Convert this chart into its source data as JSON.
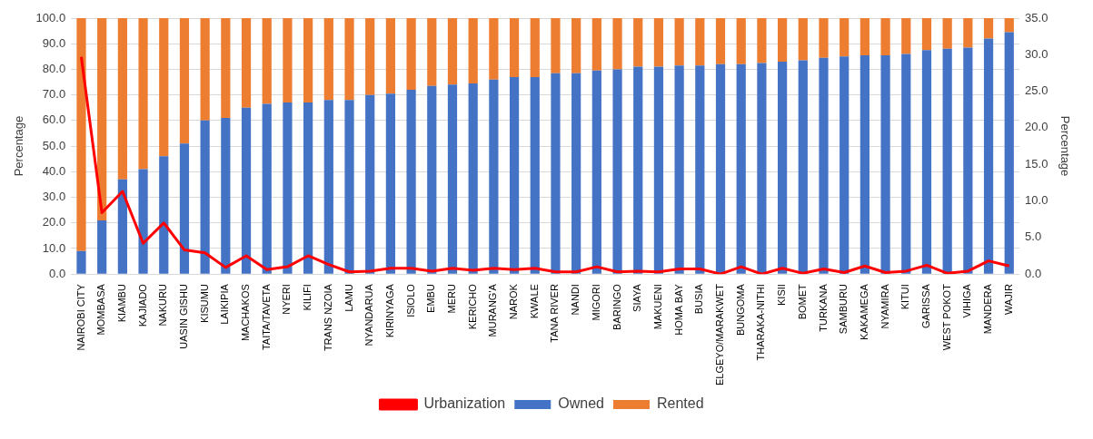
{
  "chart_data": {
    "type": "bar",
    "stacked": true,
    "ylabel": "Percentage",
    "y2label": "Percentage",
    "categories": [
      "NAIROBI CITY",
      "MOMBASA",
      "KIAMBU",
      "KAJIADO",
      "NAKURU",
      "UASIN GISHU",
      "KISUMU",
      "LAIKIPIA",
      "MACHAKOS",
      "TAITA/TAVETA",
      "NYERI",
      "KILIFI",
      "TRANS NZOIA",
      "LAMU",
      "NYANDARUA",
      "KIRINYAGA",
      "ISIOLO",
      "EMBU",
      "MERU",
      "KERICHO",
      "MURANG'A",
      "NAROK",
      "KWALE",
      "TANA RIVER",
      "NANDI",
      "MIGORI",
      "BARINGO",
      "SIAYA",
      "MAKUENI",
      "HOMA BAY",
      "BUSIA",
      "ELGEYO/MARAKWET",
      "BUNGOMA",
      "THARAKA-NITHI",
      "KISII",
      "BOMET",
      "TURKANA",
      "SAMBURU",
      "KAKAMEGA",
      "NYAMIRA",
      "KITUI",
      "GARISSA",
      "WEST POKOT",
      "VIHIGA",
      "MANDERA",
      "WAJIR"
    ],
    "series": [
      {
        "name": "Owned",
        "color": "#4472c4",
        "values": [
          9,
          21,
          37,
          41,
          46,
          51,
          60,
          61,
          65,
          66.5,
          67,
          67,
          68,
          68,
          70,
          70.5,
          72,
          73.5,
          74,
          74.5,
          76,
          77,
          77,
          78.5,
          78.5,
          79.5,
          80,
          81,
          81,
          81.5,
          81.5,
          82,
          82,
          82.5,
          83,
          83.5,
          84.5,
          85,
          85.5,
          85.5,
          86,
          87.5,
          88,
          88.5,
          92,
          94.5
        ]
      },
      {
        "name": "Rented",
        "color": "#ed7d31",
        "values": [
          91,
          79,
          63,
          59,
          54,
          49,
          40,
          39,
          35,
          33.5,
          33,
          33,
          32,
          32,
          30,
          29.5,
          28,
          26.5,
          26,
          25.5,
          24,
          23,
          23,
          21.5,
          21.5,
          20.5,
          20,
          19,
          19,
          18.5,
          18.5,
          18,
          18,
          17.5,
          17,
          16.5,
          15.5,
          15,
          14.5,
          14.5,
          14,
          12.5,
          12,
          11.5,
          8,
          5.5
        ]
      },
      {
        "name": "Urbanization",
        "type": "line",
        "axis": "y2",
        "color": "#ff0000",
        "values": [
          29.7,
          8.4,
          11.3,
          4.2,
          7.0,
          3.3,
          2.9,
          0.9,
          2.5,
          0.6,
          1.0,
          2.5,
          1.3,
          0.3,
          0.4,
          0.8,
          0.8,
          0.4,
          0.8,
          0.5,
          0.8,
          0.6,
          0.8,
          0.3,
          0.3,
          1.0,
          0.3,
          0.4,
          0.3,
          0.7,
          0.7,
          0.0,
          1.0,
          0.0,
          0.8,
          0.1,
          0.7,
          0.2,
          1.1,
          0.2,
          0.4,
          1.2,
          0.1,
          0.4,
          1.8,
          1.1
        ]
      }
    ],
    "ylim": [
      0,
      100
    ],
    "yticks": [
      {
        "value": 0,
        "label": "0.0"
      },
      {
        "value": 10,
        "label": "10.0"
      },
      {
        "value": 20,
        "label": "20.0"
      },
      {
        "value": 30,
        "label": "30.0"
      },
      {
        "value": 40,
        "label": "40.0"
      },
      {
        "value": 50,
        "label": "50.0"
      },
      {
        "value": 60,
        "label": "60.0"
      },
      {
        "value": 70,
        "label": "70.0"
      },
      {
        "value": 80,
        "label": "80.0"
      },
      {
        "value": 90,
        "label": "90.0"
      },
      {
        "value": 100,
        "label": "100.0"
      }
    ],
    "y2lim": [
      0,
      35
    ],
    "y2ticks": [
      {
        "value": 0,
        "label": "0.0"
      },
      {
        "value": 5,
        "label": "5.0"
      },
      {
        "value": 10,
        "label": "10.0"
      },
      {
        "value": 15,
        "label": "15.0"
      },
      {
        "value": 20,
        "label": "20.0"
      },
      {
        "value": 25,
        "label": "25.0"
      },
      {
        "value": 30,
        "label": "30.0"
      },
      {
        "value": 35,
        "label": "35.0"
      }
    ],
    "grid": "y",
    "legend": "bottom",
    "marker": "none",
    "line_style": "solid"
  }
}
